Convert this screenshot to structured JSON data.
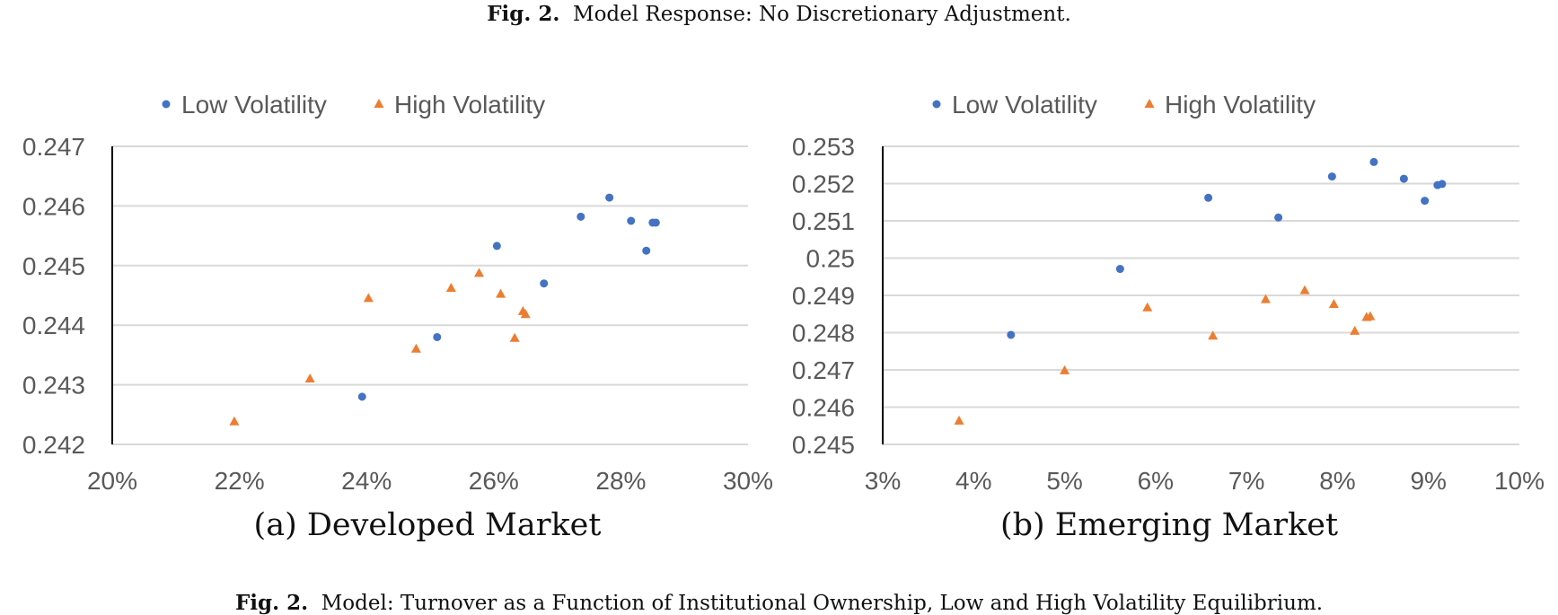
{
  "figure": {
    "top_label": "Fig. 2.",
    "top_title": "Model Response: No Discretionary Adjustment.",
    "bottom_label": "Fig. 2.",
    "bottom_title": "Model: Turnover as a Function of Institutional Ownership, Low and High Volatility Equilibrium."
  },
  "colors": {
    "low": "#4472C4",
    "high": "#ED7D31",
    "grid": "#D9D9D9",
    "axis": "#000000",
    "text": "#595959"
  },
  "chart_data": [
    {
      "type": "scatter",
      "caption": "(a) Developed Market",
      "xlim": [
        0.2,
        0.3
      ],
      "ylim": [
        0.242,
        0.247
      ],
      "x_ticks": [
        "20%",
        "22%",
        "24%",
        "26%",
        "28%",
        "30%"
      ],
      "y_ticks": [
        "0.242",
        "0.243",
        "0.244",
        "0.245",
        "0.246",
        "0.247"
      ],
      "grid": "horizontal",
      "legend_position": "top",
      "series": [
        {
          "name": "Low Volatility",
          "marker": "circle",
          "points": [
            [
              0.2393,
              0.2428
            ],
            [
              0.2511,
              0.2438
            ],
            [
              0.2605,
              0.24533
            ],
            [
              0.2679,
              0.2447
            ],
            [
              0.2737,
              0.24582
            ],
            [
              0.2782,
              0.24614
            ],
            [
              0.2816,
              0.24575
            ],
            [
              0.284,
              0.24525
            ],
            [
              0.285,
              0.24572
            ],
            [
              0.2855,
              0.24572
            ]
          ]
        },
        {
          "name": "High Volatility",
          "marker": "triangle",
          "points": [
            [
              0.2192,
              0.24238
            ],
            [
              0.2311,
              0.2431
            ],
            [
              0.2403,
              0.24445
            ],
            [
              0.2478,
              0.2436
            ],
            [
              0.2533,
              0.24462
            ],
            [
              0.2577,
              0.24487
            ],
            [
              0.2611,
              0.24452
            ],
            [
              0.2633,
              0.24378
            ],
            [
              0.2646,
              0.24423
            ],
            [
              0.265,
              0.24418
            ]
          ]
        }
      ]
    },
    {
      "type": "scatter",
      "caption": "(b) Emerging Market",
      "xlim": [
        0.03,
        0.1
      ],
      "ylim": [
        0.245,
        0.253
      ],
      "x_ticks": [
        "3%",
        "4%",
        "5%",
        "6%",
        "7%",
        "8%",
        "9%",
        "10%"
      ],
      "y_ticks": [
        "0.245",
        "0.246",
        "0.247",
        "0.248",
        "0.249",
        "0.25",
        "0.251",
        "0.252",
        "0.253"
      ],
      "grid": "horizontal",
      "legend_position": "top",
      "series": [
        {
          "name": "Low Volatility",
          "marker": "circle",
          "points": [
            [
              0.0441,
              0.24794
            ],
            [
              0.0561,
              0.24971
            ],
            [
              0.0658,
              0.25162
            ],
            [
              0.0735,
              0.25109
            ],
            [
              0.0794,
              0.25219
            ],
            [
              0.084,
              0.25258
            ],
            [
              0.0873,
              0.25213
            ],
            [
              0.0896,
              0.25154
            ],
            [
              0.091,
              0.25196
            ],
            [
              0.0915,
              0.25199
            ]
          ]
        },
        {
          "name": "High Volatility",
          "marker": "triangle",
          "points": [
            [
              0.0384,
              0.24563
            ],
            [
              0.05,
              0.24698
            ],
            [
              0.0591,
              0.24867
            ],
            [
              0.0663,
              0.24791
            ],
            [
              0.0721,
              0.24889
            ],
            [
              0.0764,
              0.24913
            ],
            [
              0.0796,
              0.24876
            ],
            [
              0.0819,
              0.24804
            ],
            [
              0.0832,
              0.24841
            ],
            [
              0.0836,
              0.24843
            ]
          ]
        }
      ]
    }
  ]
}
